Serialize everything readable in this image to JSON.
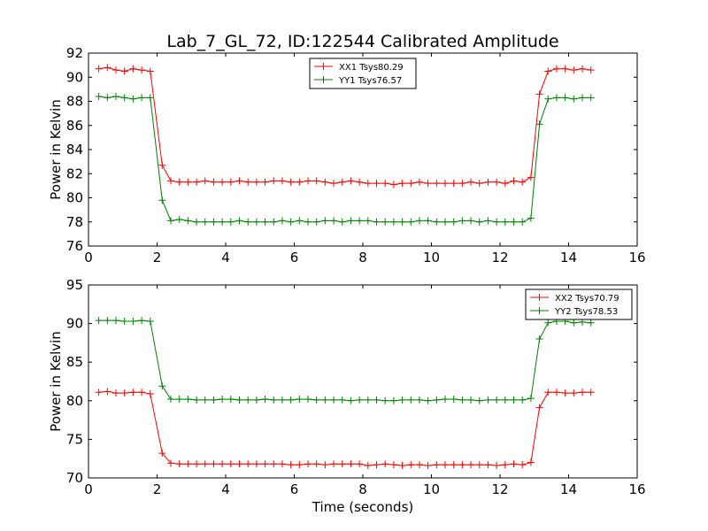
{
  "title": "Lab_7_GL_72, ID:122544 Calibrated Amplitude",
  "xlabel": "Time (seconds)",
  "colors": {
    "red": "#ff0000",
    "green": "#008000"
  },
  "chart_data": [
    {
      "type": "line",
      "ylabel": "Power in Kelvin",
      "xlim": [
        0,
        16
      ],
      "ylim": [
        76,
        92
      ],
      "xticks": [
        0,
        2,
        4,
        6,
        8,
        10,
        12,
        14,
        16
      ],
      "yticks": [
        76,
        78,
        80,
        82,
        84,
        86,
        88,
        90,
        92
      ],
      "legend_position": "top-center",
      "x": [
        0.3,
        0.55,
        0.8,
        1.05,
        1.3,
        1.55,
        1.8,
        2.15,
        2.4,
        2.65,
        2.9,
        3.15,
        3.4,
        3.65,
        3.9,
        4.15,
        4.4,
        4.65,
        4.9,
        5.15,
        5.4,
        5.65,
        5.9,
        6.15,
        6.4,
        6.65,
        6.9,
        7.15,
        7.4,
        7.65,
        7.9,
        8.15,
        8.4,
        8.65,
        8.9,
        9.15,
        9.4,
        9.65,
        9.9,
        10.15,
        10.4,
        10.65,
        10.9,
        11.15,
        11.4,
        11.65,
        11.9,
        12.15,
        12.4,
        12.65,
        12.9,
        13.15,
        13.4,
        13.65,
        13.9,
        14.15,
        14.4,
        14.65
      ],
      "series": [
        {
          "name": "XX1 Tsys80.29",
          "color": "#ff0000",
          "values": [
            90.7,
            90.8,
            90.6,
            90.5,
            90.7,
            90.6,
            90.5,
            82.7,
            81.4,
            81.3,
            81.3,
            81.3,
            81.4,
            81.3,
            81.3,
            81.3,
            81.4,
            81.3,
            81.3,
            81.3,
            81.4,
            81.4,
            81.3,
            81.3,
            81.4,
            81.4,
            81.3,
            81.2,
            81.3,
            81.4,
            81.3,
            81.2,
            81.2,
            81.2,
            81.1,
            81.2,
            81.2,
            81.3,
            81.2,
            81.2,
            81.2,
            81.2,
            81.2,
            81.3,
            81.2,
            81.3,
            81.3,
            81.2,
            81.4,
            81.3,
            81.7,
            88.6,
            90.5,
            90.7,
            90.7,
            90.6,
            90.7,
            90.6
          ]
        },
        {
          "name": "YY1 Tsys76.57",
          "color": "#008000",
          "values": [
            88.4,
            88.3,
            88.4,
            88.3,
            88.2,
            88.3,
            88.3,
            79.8,
            78.1,
            78.2,
            78.1,
            78.0,
            78.0,
            78.0,
            78.0,
            78.0,
            78.1,
            78.0,
            78.0,
            78.0,
            78.0,
            78.1,
            78.0,
            78.1,
            78.0,
            78.0,
            78.1,
            78.1,
            78.0,
            78.1,
            78.1,
            78.1,
            78.0,
            78.0,
            78.0,
            78.0,
            78.0,
            78.1,
            78.1,
            78.0,
            78.0,
            78.0,
            78.1,
            78.1,
            78.0,
            78.1,
            78.0,
            78.0,
            78.0,
            78.0,
            78.3,
            86.1,
            88.2,
            88.3,
            88.3,
            88.2,
            88.3,
            88.3
          ]
        }
      ]
    },
    {
      "type": "line",
      "ylabel": "Power in Kelvin",
      "xlabel": "Time (seconds)",
      "xlim": [
        0,
        16
      ],
      "ylim": [
        70,
        95
      ],
      "xticks": [
        0,
        2,
        4,
        6,
        8,
        10,
        12,
        14,
        16
      ],
      "yticks": [
        70,
        75,
        80,
        85,
        90,
        95
      ],
      "legend_position": "top-right",
      "x": [
        0.3,
        0.55,
        0.8,
        1.05,
        1.3,
        1.55,
        1.8,
        2.15,
        2.4,
        2.65,
        2.9,
        3.15,
        3.4,
        3.65,
        3.9,
        4.15,
        4.4,
        4.65,
        4.9,
        5.15,
        5.4,
        5.65,
        5.9,
        6.15,
        6.4,
        6.65,
        6.9,
        7.15,
        7.4,
        7.65,
        7.9,
        8.15,
        8.4,
        8.65,
        8.9,
        9.15,
        9.4,
        9.65,
        9.9,
        10.15,
        10.4,
        10.65,
        10.9,
        11.15,
        11.4,
        11.65,
        11.9,
        12.15,
        12.4,
        12.65,
        12.9,
        13.15,
        13.4,
        13.65,
        13.9,
        14.15,
        14.4,
        14.65
      ],
      "series": [
        {
          "name": "XX2 Tsys70.79",
          "color": "#ff0000",
          "values": [
            81.1,
            81.2,
            81.0,
            81.0,
            81.1,
            81.1,
            80.9,
            73.2,
            71.9,
            71.8,
            71.8,
            71.8,
            71.8,
            71.8,
            71.8,
            71.8,
            71.8,
            71.8,
            71.8,
            71.8,
            71.8,
            71.8,
            71.7,
            71.7,
            71.8,
            71.8,
            71.7,
            71.8,
            71.8,
            71.8,
            71.8,
            71.6,
            71.7,
            71.8,
            71.7,
            71.6,
            71.7,
            71.7,
            71.6,
            71.7,
            71.7,
            71.7,
            71.7,
            71.7,
            71.7,
            71.7,
            71.6,
            71.7,
            71.8,
            71.7,
            72.0,
            79.1,
            81.1,
            81.1,
            81.0,
            81.0,
            81.1,
            81.1
          ]
        },
        {
          "name": "YY2 Tsys78.53",
          "color": "#008000",
          "values": [
            90.4,
            90.4,
            90.4,
            90.3,
            90.3,
            90.4,
            90.3,
            81.9,
            80.2,
            80.2,
            80.2,
            80.1,
            80.1,
            80.1,
            80.2,
            80.2,
            80.1,
            80.1,
            80.1,
            80.2,
            80.1,
            80.1,
            80.1,
            80.2,
            80.2,
            80.1,
            80.1,
            80.1,
            80.1,
            80.0,
            80.1,
            80.1,
            80.1,
            80.0,
            80.0,
            80.1,
            80.1,
            80.1,
            80.0,
            80.1,
            80.2,
            80.2,
            80.1,
            80.1,
            80.0,
            80.1,
            80.1,
            80.1,
            80.1,
            80.1,
            80.3,
            88.0,
            90.1,
            90.3,
            90.3,
            90.1,
            90.2,
            90.1
          ]
        }
      ]
    }
  ]
}
